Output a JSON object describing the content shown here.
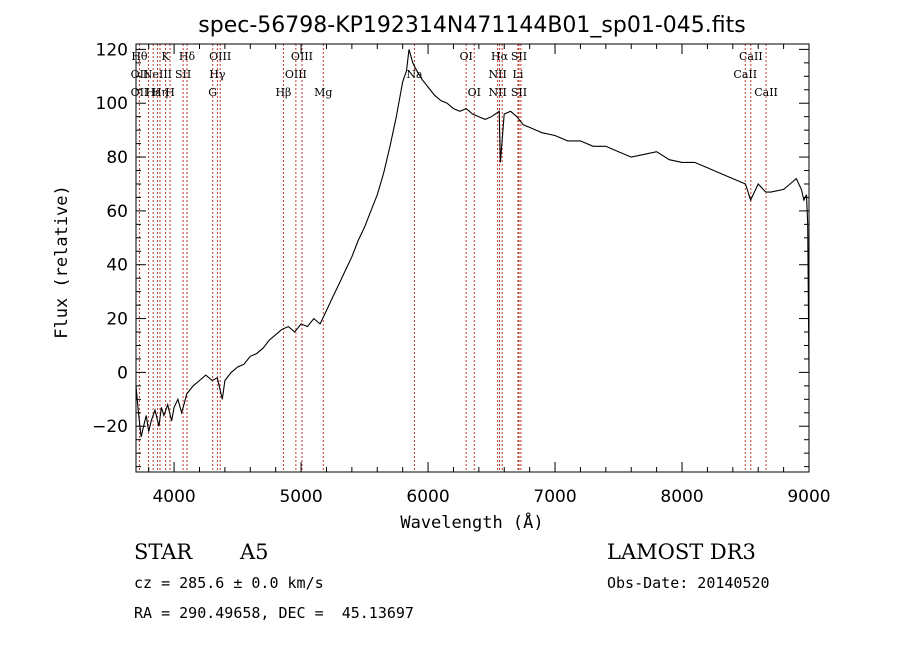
{
  "chart_data": {
    "type": "line",
    "title": "spec-56798-KP192314N471144B01_sp01-045.fits",
    "xlabel": "Wavelength (Å)",
    "ylabel": "Flux (relative)",
    "xlim": [
      3700,
      9000
    ],
    "ylim": [
      -37,
      122
    ],
    "xticks": [
      4000,
      5000,
      6000,
      7000,
      8000,
      9000
    ],
    "yticks": [
      -20,
      0,
      20,
      40,
      60,
      80,
      100,
      120
    ],
    "xtick_labels": [
      "4000",
      "5000",
      "6000",
      "7000",
      "8000",
      "9000"
    ],
    "ytick_labels": [
      "−20",
      "0",
      "20",
      "40",
      "60",
      "80",
      "100",
      "120"
    ],
    "series": [
      {
        "name": "flux",
        "x": [
          3700,
          3720,
          3740,
          3760,
          3780,
          3800,
          3820,
          3850,
          3880,
          3900,
          3920,
          3950,
          3980,
          4000,
          4030,
          4060,
          4100,
          4150,
          4200,
          4250,
          4300,
          4340,
          4380,
          4400,
          4450,
          4500,
          4550,
          4600,
          4650,
          4700,
          4750,
          4800,
          4850,
          4900,
          4950,
          5000,
          5050,
          5100,
          5150,
          5200,
          5250,
          5300,
          5350,
          5400,
          5450,
          5500,
          5550,
          5600,
          5650,
          5700,
          5750,
          5800,
          5830,
          5850,
          5880,
          5900,
          5950,
          6000,
          6050,
          6100,
          6150,
          6200,
          6250,
          6300,
          6350,
          6400,
          6450,
          6500,
          6560,
          6570,
          6600,
          6650,
          6700,
          6750,
          6800,
          6850,
          6900,
          7000,
          7100,
          7200,
          7300,
          7400,
          7500,
          7600,
          7700,
          7800,
          7900,
          8000,
          8100,
          8200,
          8300,
          8400,
          8500,
          8540,
          8600,
          8660,
          8700,
          8800,
          8850,
          8900,
          8940,
          8960,
          8980,
          8990,
          9000
        ],
        "y": [
          -5,
          -15,
          -24,
          -20,
          -16,
          -22,
          -18,
          -14,
          -20,
          -13,
          -16,
          -12,
          -18,
          -13,
          -10,
          -15,
          -8,
          -5,
          -3,
          -1,
          -3,
          -2,
          -10,
          -3,
          0,
          2,
          3,
          6,
          7,
          9,
          12,
          14,
          16,
          17,
          15,
          18,
          17,
          20,
          18,
          23,
          28,
          33,
          38,
          43,
          49,
          54,
          60,
          66,
          74,
          84,
          95,
          108,
          112,
          120,
          115,
          113,
          109,
          106,
          103,
          101,
          100,
          98,
          97,
          98,
          96,
          95,
          94,
          95,
          97,
          78,
          96,
          97,
          95,
          92,
          91,
          90,
          89,
          88,
          86,
          86,
          84,
          84,
          82,
          80,
          81,
          82,
          79,
          78,
          78,
          76,
          74,
          72,
          70,
          64,
          70,
          67,
          67,
          68,
          70,
          72,
          68,
          64,
          66,
          55,
          0
        ]
      }
    ],
    "lines": [
      {
        "w": 3727,
        "l1": "Hθ",
        "l2": "OII",
        "l3": "OII"
      },
      {
        "w": 3798,
        "l1": "",
        "l2": "",
        "l3": ""
      },
      {
        "w": 3835,
        "l1": "",
        "l2": "",
        "l3": "Hε"
      },
      {
        "w": 3869,
        "l1": "",
        "l2": "NeIII",
        "l3": ""
      },
      {
        "w": 3889,
        "l1": "",
        "l2": "",
        "l3": "Hη"
      },
      {
        "w": 3933,
        "l1": "K",
        "l2": "",
        "l3": ""
      },
      {
        "w": 3968,
        "l1": "",
        "l2": "",
        "l3": "H"
      },
      {
        "w": 4071,
        "l1": "",
        "l2": "SII",
        "l3": ""
      },
      {
        "w": 4102,
        "l1": "Hδ",
        "l2": "",
        "l3": ""
      },
      {
        "w": 4304,
        "l1": "",
        "l2": "",
        "l3": "G"
      },
      {
        "w": 4341,
        "l1": "",
        "l2": "Hγ",
        "l3": ""
      },
      {
        "w": 4363,
        "l1": "OIII",
        "l2": "",
        "l3": ""
      },
      {
        "w": 4861,
        "l1": "",
        "l2": "",
        "l3": "Hβ"
      },
      {
        "w": 4959,
        "l1": "",
        "l2": "OIII",
        "l3": ""
      },
      {
        "w": 5007,
        "l1": "OIII",
        "l2": "",
        "l3": ""
      },
      {
        "w": 5175,
        "l1": "",
        "l2": "",
        "l3": "Mg"
      },
      {
        "w": 5893,
        "l1": "",
        "l2": "Na",
        "l3": ""
      },
      {
        "w": 6300,
        "l1": "OI",
        "l2": "",
        "l3": ""
      },
      {
        "w": 6364,
        "l1": "",
        "l2": "",
        "l3": "OI"
      },
      {
        "w": 6548,
        "l1": "",
        "l2": "NII",
        "l3": "NII"
      },
      {
        "w": 6563,
        "l1": "Hα",
        "l2": "",
        "l3": ""
      },
      {
        "w": 6584,
        "l1": "",
        "l2": "",
        "l3": ""
      },
      {
        "w": 6708,
        "l1": "",
        "l2": "Li",
        "l3": ""
      },
      {
        "w": 6716,
        "l1": "SII",
        "l2": "",
        "l3": "SII"
      },
      {
        "w": 6731,
        "l1": "",
        "l2": "",
        "l3": ""
      },
      {
        "w": 8498,
        "l1": "",
        "l2": "CaII",
        "l3": ""
      },
      {
        "w": 8542,
        "l1": "CaII",
        "l2": "",
        "l3": ""
      },
      {
        "w": 8662,
        "l1": "",
        "l2": "",
        "l3": "CaII"
      }
    ]
  },
  "info": {
    "class": "STAR",
    "subclass": "A5",
    "survey": "LAMOST DR3",
    "cz": "cz = 285.6 ± 0.0 km/s",
    "obsdate": "Obs-Date: 20140520",
    "radec": "RA = 290.49658, DEC =  45.13697"
  }
}
